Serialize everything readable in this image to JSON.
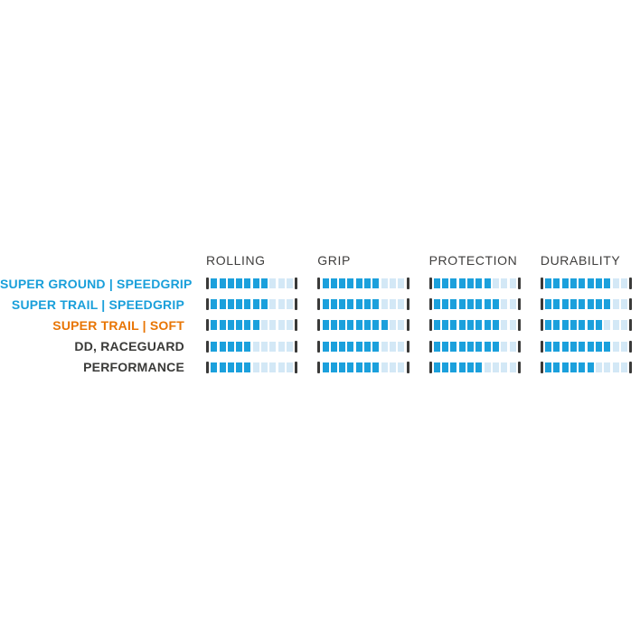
{
  "chart_data": {
    "type": "bar",
    "subtype": "segmented-rating-table",
    "title": "",
    "categories": [
      "ROLLING",
      "GRIP",
      "PROTECTION",
      "DURABILITY"
    ],
    "scale": {
      "min": 0,
      "max": 10,
      "unit": "segments"
    },
    "series": [
      {
        "name": "SUPER GROUND | SPEEDGRIP",
        "label_color": "#199fda",
        "values": [
          7,
          7,
          7,
          8
        ]
      },
      {
        "name": "SUPER TRAIL | SPEEDGRIP",
        "label_color": "#199fda",
        "values": [
          7,
          7,
          8,
          8
        ]
      },
      {
        "name": "SUPER TRAIL | SOFT",
        "label_color": "#e87504",
        "values": [
          6,
          8,
          8,
          7
        ]
      },
      {
        "name": "DD, RACEGUARD",
        "label_color": "#3a3a38",
        "values": [
          5,
          7,
          8,
          8
        ]
      },
      {
        "name": "PERFORMANCE",
        "label_color": "#3a3a38",
        "values": [
          5,
          7,
          6,
          6
        ]
      }
    ],
    "colors": {
      "segment_filled": "#1ba0dc",
      "segment_empty": "#d3e8f6",
      "end_marker": "#3a3a39",
      "header_text": "#3f3e3d"
    },
    "legend_position": "none",
    "grid": false
  }
}
